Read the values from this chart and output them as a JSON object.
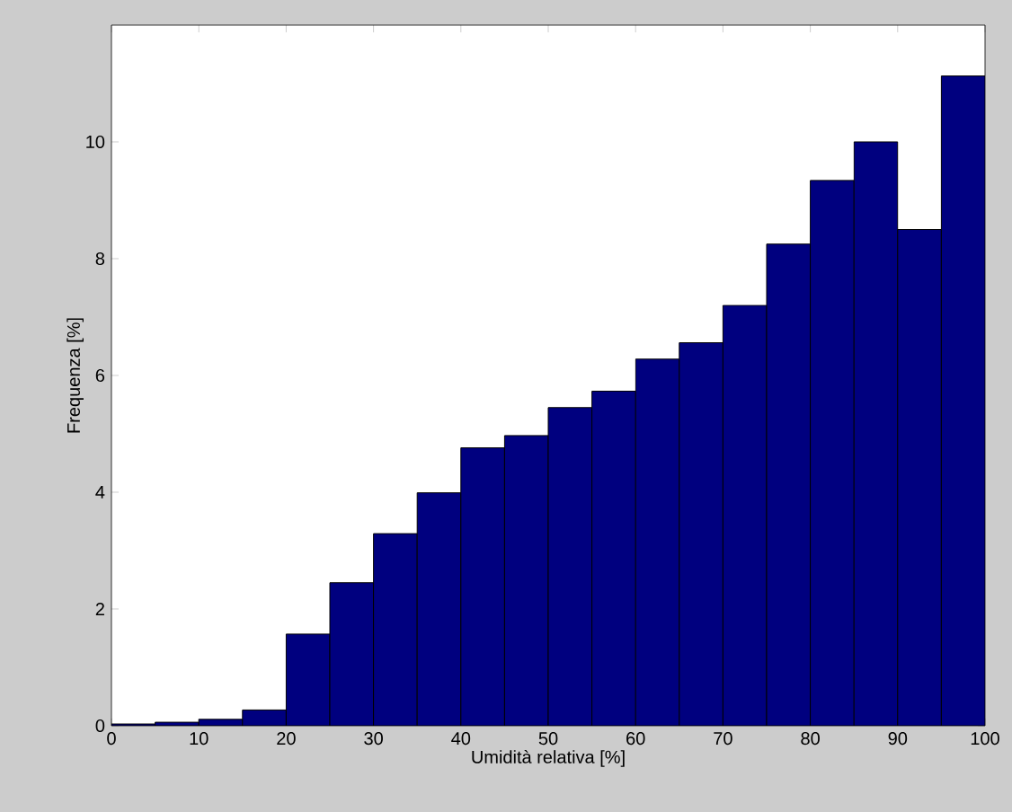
{
  "chart_data": {
    "type": "histogram",
    "xlabel": "Umidità relativa [%]",
    "ylabel": "Frequenza [%]",
    "bins": [
      0,
      5,
      10,
      15,
      20,
      25,
      30,
      35,
      40,
      45,
      50,
      55,
      60,
      65,
      70,
      75,
      80,
      85,
      90,
      95,
      100
    ],
    "values": [
      0.03,
      0.06,
      0.11,
      0.27,
      1.57,
      2.45,
      3.29,
      3.99,
      4.76,
      4.97,
      5.45,
      5.73,
      6.28,
      6.56,
      7.2,
      8.25,
      9.34,
      10.0,
      8.5,
      11.13
    ],
    "color": "#00007f",
    "xlim": [
      0,
      100
    ],
    "ylim": [
      0,
      12
    ],
    "xticks": [
      0,
      10,
      20,
      30,
      40,
      50,
      60,
      70,
      80,
      90,
      100
    ],
    "yticks": [
      0,
      2,
      4,
      6,
      8,
      10
    ],
    "grid": false
  }
}
